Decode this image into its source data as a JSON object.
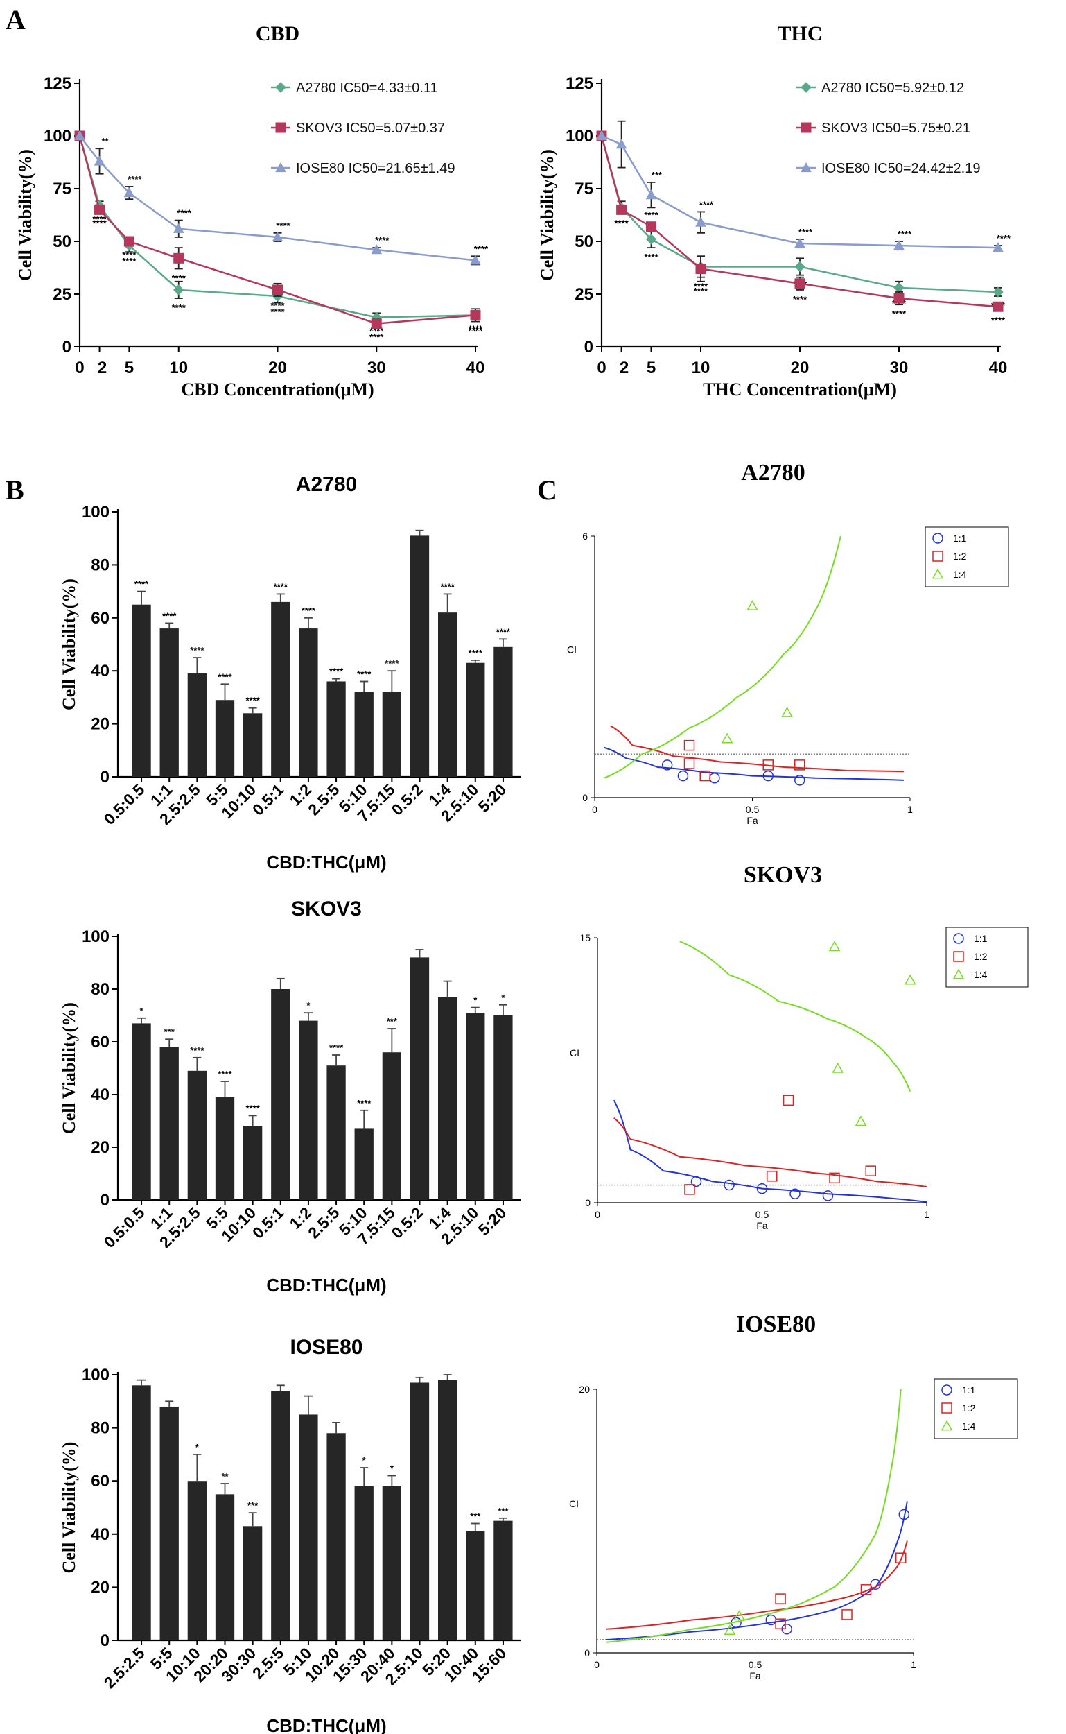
{
  "panels": {
    "A": "A",
    "B": "B",
    "C": "C"
  },
  "colors": {
    "a2780": "#5aa88a",
    "skov3": "#b5375c",
    "iose80": "#8a9ccc",
    "bar": "#262626",
    "c11": "#2233dd",
    "c12": "#dd2222",
    "c14": "#77dd22"
  },
  "chart_data": [
    {
      "id": "cbd_line",
      "type": "line",
      "title": "CBD",
      "xlabel": "CBD Concentration(μM)",
      "ylabel": "Cell Viability(%)",
      "x": [
        0,
        2,
        5,
        10,
        20,
        30,
        40
      ],
      "xticks": [
        "0",
        "2",
        "5",
        "10",
        "20",
        "30",
        "40"
      ],
      "ylim": [
        0,
        125
      ],
      "yticks": [
        "0",
        "25",
        "50",
        "75",
        "100",
        "125"
      ],
      "series": [
        {
          "name": "A2780",
          "legend": "A2780  IC50=4.33±0.11",
          "marker": "diamond",
          "color": "#5aa88a",
          "values": [
            100,
            67,
            48,
            27,
            24,
            14,
            15
          ],
          "err": [
            0,
            2,
            3,
            4,
            3,
            2,
            2
          ],
          "sig": [
            "",
            "****",
            "****",
            "****",
            "****",
            "****",
            "****"
          ]
        },
        {
          "name": "SKOV3",
          "legend": "SKOV3  IC50=5.07±0.37",
          "marker": "square",
          "color": "#b5375c",
          "values": [
            100,
            65,
            50,
            42,
            27,
            11,
            15
          ],
          "err": [
            0,
            2,
            2,
            5,
            3,
            2,
            3
          ],
          "sig": [
            "",
            "****",
            "****",
            "****",
            "****",
            "****",
            "****"
          ]
        },
        {
          "name": "IOSE80",
          "legend": "IOSE80 IC50=21.65±1.49",
          "marker": "triangle",
          "color": "#8a9ccc",
          "values": [
            100,
            88,
            73,
            56,
            52,
            46,
            41
          ],
          "err": [
            0,
            6,
            3,
            4,
            2,
            1,
            2
          ],
          "sig": [
            "",
            "**",
            "****",
            "****",
            "****",
            "****",
            "****"
          ]
        }
      ]
    },
    {
      "id": "thc_line",
      "type": "line",
      "title": "THC",
      "xlabel": "THC Concentration(μM)",
      "ylabel": "Cell Viability(%)",
      "x": [
        0,
        2,
        5,
        10,
        20,
        30,
        40
      ],
      "xticks": [
        "0",
        "2",
        "5",
        "10",
        "20",
        "30",
        "40"
      ],
      "ylim": [
        0,
        125
      ],
      "yticks": [
        "0",
        "25",
        "50",
        "75",
        "100",
        "125"
      ],
      "series": [
        {
          "name": "A2780",
          "legend": "A2780 IC50=5.92±0.12",
          "marker": "diamond",
          "color": "#5aa88a",
          "values": [
            100,
            66,
            51,
            38,
            38,
            28,
            26
          ],
          "err": [
            0,
            3,
            4,
            5,
            4,
            3,
            2
          ],
          "sig": [
            "",
            "****",
            "****",
            "****",
            "****",
            "****",
            "****"
          ]
        },
        {
          "name": "SKOV3",
          "legend": "SKOV3  IC50=5.75±0.21",
          "marker": "square",
          "color": "#b5375c",
          "values": [
            100,
            65,
            57,
            37,
            30,
            23,
            19
          ],
          "err": [
            0,
            2,
            2,
            6,
            3,
            3,
            2
          ],
          "sig": [
            "",
            "****",
            "****",
            "****",
            "****",
            "****",
            "****"
          ]
        },
        {
          "name": "IOSE80",
          "legend": "IOSE80 IC50=24.42±2.19",
          "marker": "triangle",
          "color": "#8a9ccc",
          "values": [
            100,
            96,
            72,
            59,
            49,
            48,
            47
          ],
          "err": [
            0,
            11,
            6,
            5,
            2,
            2,
            1
          ],
          "sig": [
            "",
            "",
            "***",
            "****",
            "****",
            "****",
            "****"
          ]
        }
      ]
    },
    {
      "id": "bar_a2780",
      "type": "bar",
      "title": "A2780",
      "xlabel": "CBD:THC(μM)",
      "ylabel": "Cell Viability(%)",
      "ylim": [
        0,
        100
      ],
      "yticks": [
        "0",
        "20",
        "40",
        "60",
        "80",
        "100"
      ],
      "categories": [
        "0.5:0.5",
        "1:1",
        "2.5:2.5",
        "5:5",
        "10:10",
        "0.5:1",
        "1:2",
        "2.5:5",
        "5:10",
        "7.5:15",
        "0.5:2",
        "1:4",
        "2.5:10",
        "5:20"
      ],
      "values": [
        65,
        56,
        39,
        29,
        24,
        66,
        56,
        36,
        32,
        32,
        91,
        62,
        43,
        49
      ],
      "err": [
        5,
        2,
        6,
        6,
        2,
        3,
        4,
        1,
        4,
        8,
        2,
        7,
        1,
        3
      ],
      "sig": [
        "****",
        "****",
        "****",
        "****",
        "****",
        "****",
        "****",
        "****",
        "****",
        "****",
        "",
        "****",
        "****",
        "****"
      ]
    },
    {
      "id": "bar_skov3",
      "type": "bar",
      "title": "SKOV3",
      "xlabel": "CBD:THC(μM)",
      "ylabel": "Cell Viability(%)",
      "ylim": [
        0,
        100
      ],
      "yticks": [
        "0",
        "20",
        "40",
        "60",
        "80",
        "100"
      ],
      "categories": [
        "0.5:0.5",
        "1:1",
        "2.5:2.5",
        "5:5",
        "10:10",
        "0.5:1",
        "1:2",
        "2.5:5",
        "5:10",
        "7.5:15",
        "0.5:2",
        "1:4",
        "2.5:10",
        "5:20"
      ],
      "values": [
        67,
        58,
        49,
        39,
        28,
        80,
        68,
        51,
        27,
        56,
        92,
        77,
        71,
        70
      ],
      "err": [
        2,
        3,
        5,
        6,
        4,
        4,
        3,
        4,
        7,
        9,
        3,
        6,
        2,
        4
      ],
      "sig": [
        "*",
        "***",
        "****",
        "****",
        "****",
        "",
        "*",
        "****",
        "****",
        "***",
        "",
        "",
        "*",
        "*"
      ]
    },
    {
      "id": "bar_iose80",
      "type": "bar",
      "title": "IOSE80",
      "xlabel": "CBD:THC(μM)",
      "ylabel": "Cell Viability(%)",
      "ylim": [
        0,
        100
      ],
      "yticks": [
        "0",
        "20",
        "40",
        "60",
        "80",
        "100"
      ],
      "categories": [
        "2.5:2.5",
        "5:5",
        "10:10",
        "20:20",
        "30:30",
        "2.5:5",
        "5:10",
        "10:20",
        "15:30",
        "20:40",
        "2.5:10",
        "5:20",
        "10:40",
        "15:60"
      ],
      "values": [
        96,
        88,
        60,
        55,
        43,
        94,
        85,
        78,
        58,
        58,
        97,
        98,
        41,
        45
      ],
      "err": [
        2,
        2,
        10,
        4,
        5,
        2,
        7,
        4,
        7,
        4,
        2,
        2,
        3,
        1
      ],
      "sig": [
        "",
        "",
        "*",
        "**",
        "***",
        "",
        "",
        "",
        "*",
        "*",
        "",
        "",
        "***",
        "***"
      ]
    },
    {
      "id": "ci_a2780",
      "type": "scatter",
      "title": "A2780",
      "xlabel": "Fa",
      "ylabel": "CI",
      "xlim": [
        0,
        1
      ],
      "ylim": [
        0,
        6
      ],
      "xticks": [
        "0",
        "0.5",
        "1"
      ],
      "yticks": [
        "0",
        "6"
      ],
      "refline": 1,
      "series": [
        {
          "name": "1:1",
          "marker": "circle",
          "color": "#2233dd",
          "points": [
            [
              0.23,
              0.75
            ],
            [
              0.28,
              0.5
            ],
            [
              0.38,
              0.45
            ],
            [
              0.55,
              0.5
            ],
            [
              0.65,
              0.4
            ]
          ],
          "curve": [
            [
              0.03,
              1.15
            ],
            [
              0.1,
              0.9
            ],
            [
              0.2,
              0.7
            ],
            [
              0.35,
              0.58
            ],
            [
              0.5,
              0.5
            ],
            [
              0.7,
              0.45
            ],
            [
              0.98,
              0.4
            ]
          ]
        },
        {
          "name": "1:2",
          "marker": "square",
          "color": "#dd2222",
          "points": [
            [
              0.3,
              1.2
            ],
            [
              0.3,
              0.78
            ],
            [
              0.35,
              0.5
            ],
            [
              0.55,
              0.75
            ],
            [
              0.65,
              0.75
            ]
          ],
          "curve": [
            [
              0.05,
              1.65
            ],
            [
              0.12,
              1.2
            ],
            [
              0.25,
              0.95
            ],
            [
              0.4,
              0.82
            ],
            [
              0.6,
              0.7
            ],
            [
              0.8,
              0.62
            ],
            [
              0.98,
              0.6
            ]
          ]
        },
        {
          "name": "1:4",
          "marker": "triangle",
          "color": "#77dd22",
          "points": [
            [
              0.5,
              4.4
            ],
            [
              0.42,
              1.35
            ],
            [
              0.61,
              1.95
            ]
          ],
          "curve": [
            [
              0.03,
              0.45
            ],
            [
              0.15,
              1.0
            ],
            [
              0.3,
              1.6
            ],
            [
              0.45,
              2.3
            ],
            [
              0.6,
              3.3
            ],
            [
              0.7,
              4.3
            ],
            [
              0.78,
              6.0
            ]
          ]
        }
      ]
    },
    {
      "id": "ci_skov3",
      "type": "scatter",
      "title": "SKOV3",
      "xlabel": "Fa",
      "ylabel": "CI",
      "xlim": [
        0,
        1
      ],
      "ylim": [
        0,
        15
      ],
      "xticks": [
        "0",
        "0.5",
        "1"
      ],
      "yticks": [
        "0",
        "15"
      ],
      "refline": 1,
      "series": [
        {
          "name": "1:1",
          "marker": "circle",
          "color": "#2233dd",
          "points": [
            [
              0.3,
              1.2
            ],
            [
              0.4,
              1.0
            ],
            [
              0.5,
              0.8
            ],
            [
              0.6,
              0.5
            ],
            [
              0.7,
              0.4
            ]
          ],
          "curve": [
            [
              0.05,
              5.8
            ],
            [
              0.1,
              3.0
            ],
            [
              0.2,
              1.8
            ],
            [
              0.35,
              1.2
            ],
            [
              0.5,
              0.8
            ],
            [
              0.7,
              0.5
            ],
            [
              1.0,
              0.05
            ]
          ]
        },
        {
          "name": "1:2",
          "marker": "square",
          "color": "#dd2222",
          "points": [
            [
              0.28,
              0.75
            ],
            [
              0.53,
              1.5
            ],
            [
              0.58,
              5.8
            ],
            [
              0.72,
              1.4
            ],
            [
              0.83,
              1.8
            ]
          ],
          "curve": [
            [
              0.05,
              4.8
            ],
            [
              0.1,
              3.6
            ],
            [
              0.25,
              2.6
            ],
            [
              0.45,
              2.1
            ],
            [
              0.65,
              1.7
            ],
            [
              0.85,
              1.2
            ],
            [
              1.0,
              0.9
            ]
          ]
        },
        {
          "name": "1:4",
          "marker": "triangle",
          "color": "#77dd22",
          "points": [
            [
              0.72,
              14.5
            ],
            [
              0.95,
              12.6
            ],
            [
              0.73,
              7.6
            ],
            [
              0.8,
              4.6
            ]
          ],
          "curve": [
            [
              0.25,
              14.8
            ],
            [
              0.4,
              12.9
            ],
            [
              0.55,
              11.4
            ],
            [
              0.7,
              10.4
            ],
            [
              0.82,
              9.3
            ],
            [
              0.9,
              7.9
            ],
            [
              0.95,
              6.3
            ]
          ]
        }
      ]
    },
    {
      "id": "ci_iose80",
      "type": "scatter",
      "title": "IOSE80",
      "xlabel": "Fa",
      "ylabel": "CI",
      "xlim": [
        0,
        1
      ],
      "ylim": [
        0,
        20
      ],
      "xticks": [
        "0",
        "0.5",
        "1"
      ],
      "yticks": [
        "0",
        "20"
      ],
      "refline": 1,
      "series": [
        {
          "name": "1:1",
          "marker": "circle",
          "color": "#2233dd",
          "points": [
            [
              0.44,
              2.3
            ],
            [
              0.55,
              2.5
            ],
            [
              0.6,
              1.8
            ],
            [
              0.88,
              5.2
            ],
            [
              0.97,
              10.5
            ]
          ],
          "curve": [
            [
              0.03,
              1.0
            ],
            [
              0.3,
              1.6
            ],
            [
              0.55,
              2.3
            ],
            [
              0.75,
              3.3
            ],
            [
              0.88,
              5.0
            ],
            [
              0.95,
              8.5
            ],
            [
              0.98,
              11.5
            ]
          ]
        },
        {
          "name": "1:2",
          "marker": "square",
          "color": "#dd2222",
          "points": [
            [
              0.58,
              4.1
            ],
            [
              0.58,
              2.2
            ],
            [
              0.79,
              2.9
            ],
            [
              0.85,
              4.8
            ],
            [
              0.96,
              7.2
            ]
          ],
          "curve": [
            [
              0.03,
              1.8
            ],
            [
              0.3,
              2.5
            ],
            [
              0.55,
              3.2
            ],
            [
              0.75,
              4.0
            ],
            [
              0.88,
              5.0
            ],
            [
              0.95,
              6.6
            ],
            [
              0.98,
              8.5
            ]
          ]
        },
        {
          "name": "1:4",
          "marker": "triangle",
          "color": "#77dd22",
          "points": [
            [
              0.42,
              1.7
            ],
            [
              0.45,
              2.8
            ]
          ],
          "curve": [
            [
              0.03,
              0.8
            ],
            [
              0.3,
              1.8
            ],
            [
              0.55,
              3.0
            ],
            [
              0.75,
              5.0
            ],
            [
              0.88,
              9.0
            ],
            [
              0.93,
              14.0
            ],
            [
              0.96,
              20.0
            ]
          ]
        }
      ]
    }
  ]
}
